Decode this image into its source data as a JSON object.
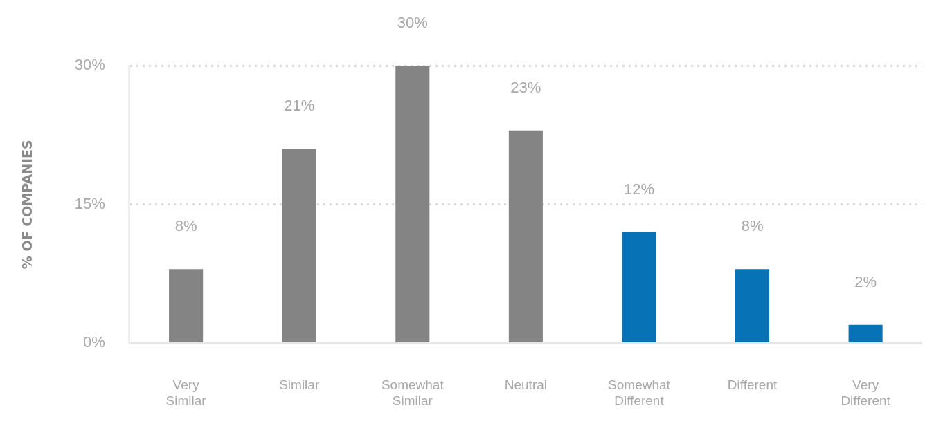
{
  "chart_data": {
    "type": "bar",
    "ylabel": "% OF COMPANIES",
    "categories": [
      "Very Similar",
      "Similar",
      "Somewhat Similar",
      "Neutral",
      "Somewhat Different",
      "Different",
      "Very Different"
    ],
    "values": [
      8,
      21,
      30,
      23,
      12,
      8,
      2
    ],
    "colors": [
      "#848484",
      "#848484",
      "#848484",
      "#848484",
      "#0773b6",
      "#0773b6",
      "#0773b6"
    ],
    "value_labels": [
      "8%",
      "21%",
      "30%",
      "23%",
      "12%",
      "8%",
      "2%"
    ],
    "ylim": [
      0,
      30
    ],
    "yticks": [
      {
        "value": 0,
        "label": "0%"
      },
      {
        "value": 15,
        "label": "15%"
      },
      {
        "value": 30,
        "label": "30%"
      }
    ],
    "grid": "y",
    "legend": false
  }
}
